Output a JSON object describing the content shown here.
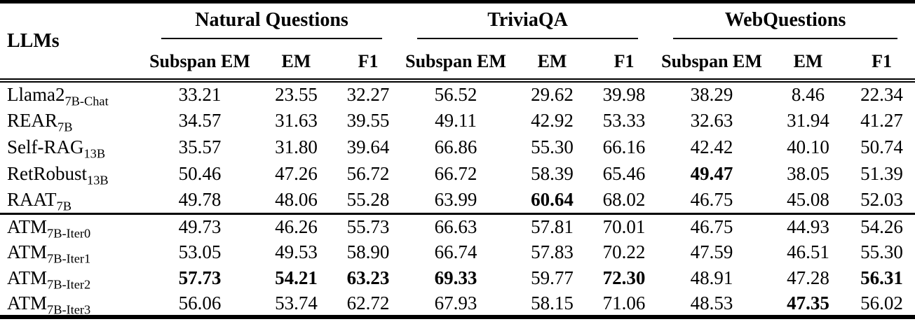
{
  "colors": {
    "text": "#000000",
    "background": "#ffffff",
    "rule": "#000000"
  },
  "table": {
    "row_header_label": "LLMs",
    "groups": [
      {
        "label": "Natural Questions",
        "columns": [
          "Subspan EM",
          "EM",
          "F1"
        ]
      },
      {
        "label": "TriviaQA",
        "columns": [
          "Subspan EM",
          "EM",
          "F1"
        ]
      },
      {
        "label": "WebQuestions",
        "columns": [
          "Subspan EM",
          "EM",
          "F1"
        ]
      }
    ],
    "sections": [
      {
        "rows": [
          {
            "model": "Llama2",
            "subscript": "7B-Chat",
            "values": [
              "33.21",
              "23.55",
              "32.27",
              "56.52",
              "29.62",
              "39.98",
              "38.29",
              "8.46",
              "22.34"
            ],
            "bold_indices": []
          },
          {
            "model": "REAR",
            "subscript": "7B",
            "values": [
              "34.57",
              "31.63",
              "39.55",
              "49.11",
              "42.92",
              "53.33",
              "32.63",
              "31.94",
              "41.27"
            ],
            "bold_indices": []
          },
          {
            "model": "Self-RAG",
            "subscript": "13B",
            "values": [
              "35.57",
              "31.80",
              "39.64",
              "66.86",
              "55.30",
              "66.16",
              "42.42",
              "40.10",
              "50.74"
            ],
            "bold_indices": []
          },
          {
            "model": "RetRobust",
            "subscript": "13B",
            "values": [
              "50.46",
              "47.26",
              "56.72",
              "66.72",
              "58.39",
              "65.46",
              "49.47",
              "38.05",
              "51.39"
            ],
            "bold_indices": [
              6
            ]
          },
          {
            "model": "RAAT",
            "subscript": "7B",
            "values": [
              "49.78",
              "48.06",
              "55.28",
              "63.99",
              "60.64",
              "68.02",
              "46.75",
              "45.08",
              "52.03"
            ],
            "bold_indices": [
              4
            ]
          }
        ]
      },
      {
        "rows": [
          {
            "model": "ATM",
            "subscript": "7B-Iter0",
            "values": [
              "49.73",
              "46.26",
              "55.73",
              "66.63",
              "57.81",
              "70.01",
              "46.75",
              "44.93",
              "54.26"
            ],
            "bold_indices": []
          },
          {
            "model": "ATM",
            "subscript": "7B-Iter1",
            "values": [
              "53.05",
              "49.53",
              "58.90",
              "66.74",
              "57.83",
              "70.22",
              "47.59",
              "46.51",
              "55.30"
            ],
            "bold_indices": []
          },
          {
            "model": "ATM",
            "subscript": "7B-Iter2",
            "values": [
              "57.73",
              "54.21",
              "63.23",
              "69.33",
              "59.77",
              "72.30",
              "48.91",
              "47.28",
              "56.31"
            ],
            "bold_indices": [
              0,
              1,
              2,
              3,
              5,
              8
            ]
          },
          {
            "model": "ATM",
            "subscript": "7B-Iter3",
            "values": [
              "56.06",
              "53.74",
              "62.72",
              "67.93",
              "58.15",
              "71.06",
              "48.53",
              "47.35",
              "56.02"
            ],
            "bold_indices": [
              7
            ]
          }
        ]
      }
    ]
  }
}
